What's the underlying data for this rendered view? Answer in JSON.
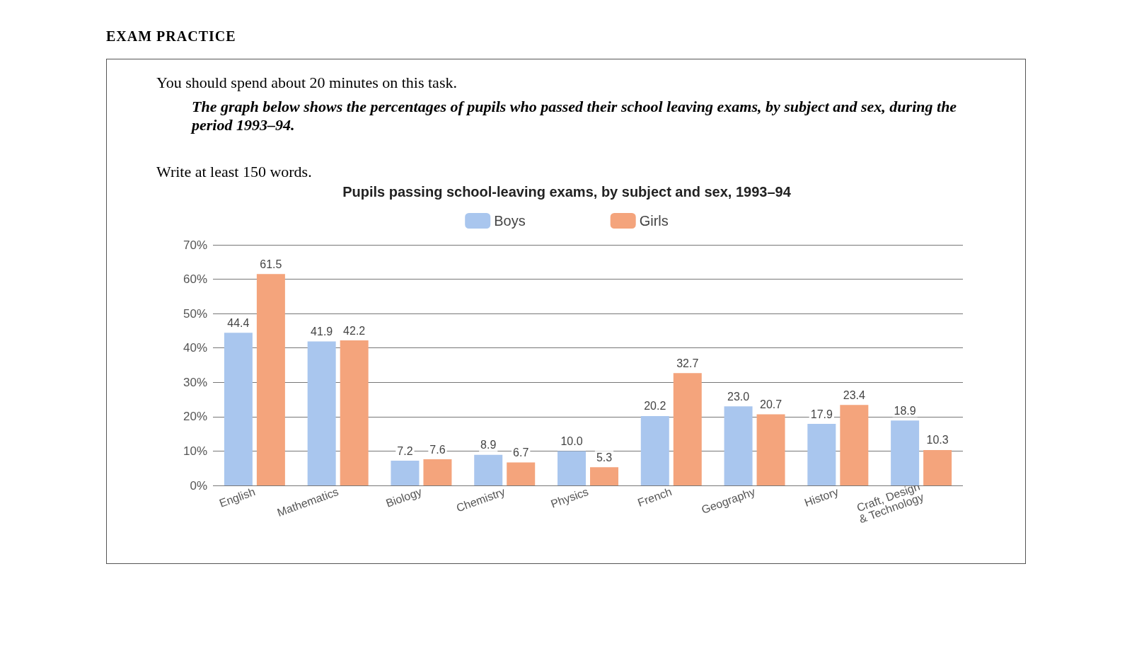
{
  "chart_data": {
    "type": "bar",
    "title": "Pupils passing school-leaving exams, by subject and sex, 1993–94",
    "annotations": [
      "EXAM PRACTICE",
      "You should spend about 20 minutes on this task.",
      "The graph below shows the percentages of pupils who passed their school leaving exams, by subject and sex, during the period 1993–94.",
      "Write at least 150 words."
    ],
    "categories": [
      "English",
      "Mathematics",
      "Biology",
      "Chemistry",
      "Physics",
      "French",
      "Geography",
      "History",
      "Craft, Design\n& Technology"
    ],
    "series": [
      {
        "name": "Boys",
        "color": "#a9c6ee",
        "values": [
          44.4,
          41.9,
          7.2,
          8.9,
          10.0,
          20.2,
          23.0,
          17.9,
          18.9
        ],
        "value_labels": [
          "44.4",
          "41.9",
          "7.2",
          "8.9",
          "10.0",
          "20.2",
          "23.0",
          "17.9",
          "18.9"
        ]
      },
      {
        "name": "Girls",
        "color": "#f4a47c",
        "values": [
          61.5,
          42.2,
          7.6,
          6.7,
          5.3,
          32.7,
          20.7,
          23.4,
          10.3
        ],
        "value_labels": [
          "61.5",
          "42.2",
          "7.6",
          "6.7",
          "5.3",
          "32.7",
          "20.7",
          "23.4",
          "10.3"
        ]
      }
    ],
    "ylim": [
      0,
      70
    ],
    "yticks": [
      {
        "value": 0,
        "label": "0%"
      },
      {
        "value": 10,
        "label": "10%"
      },
      {
        "value": 20,
        "label": "20%"
      },
      {
        "value": 30,
        "label": "30%"
      },
      {
        "value": 40,
        "label": "40%"
      },
      {
        "value": 50,
        "label": "50%"
      },
      {
        "value": 60,
        "label": "60%"
      },
      {
        "value": 70,
        "label": "70%"
      }
    ],
    "grid": "y",
    "legend": "top"
  }
}
